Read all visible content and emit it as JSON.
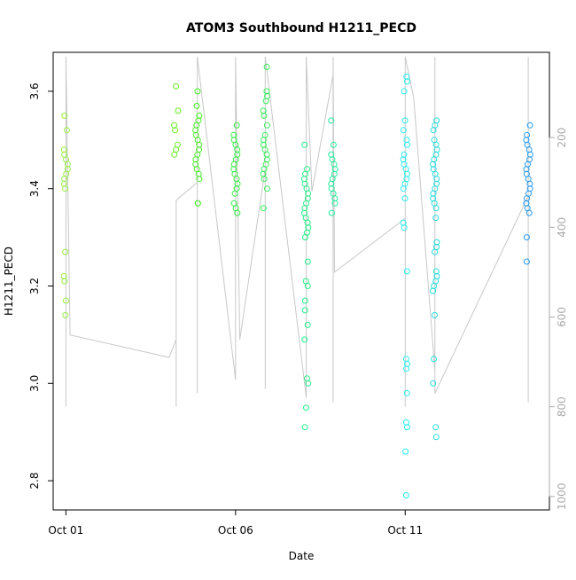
{
  "chart_data": {
    "type": "scatter",
    "title": "ATOM3 Southbound H1211_PECD",
    "xlabel": "Date",
    "ylabel": "H1211_PECD",
    "x_ticks": [
      "Oct 01",
      "Oct 06",
      "Oct 11"
    ],
    "y_ticks": [
      2.8,
      3.0,
      3.2,
      3.4,
      3.6
    ],
    "ylim": [
      2.74,
      3.68
    ],
    "xlim": [
      "2016-09-30T15:00",
      "2016-10-15T06:00"
    ],
    "y2_label": "",
    "y2_ticks": [
      200,
      400,
      600,
      800,
      1000
    ],
    "y2lim": [
      1030,
      10
    ],
    "marker": "open-circle",
    "series": [
      {
        "color": "#99ee44",
        "points": [
          [
            "2016-10-01T00:00",
            3.55
          ],
          [
            "2016-10-01T00:00",
            3.52
          ],
          [
            "2016-10-01T00:00",
            3.48
          ],
          [
            "2016-10-01T00:00",
            3.47
          ],
          [
            "2016-10-01T00:00",
            3.46
          ],
          [
            "2016-10-01T00:00",
            3.45
          ],
          [
            "2016-10-01T00:00",
            3.44
          ],
          [
            "2016-10-01T00:00",
            3.43
          ],
          [
            "2016-10-01T00:00",
            3.42
          ],
          [
            "2016-10-01T00:00",
            3.41
          ],
          [
            "2016-10-01T00:00",
            3.4
          ],
          [
            "2016-10-01T00:00",
            3.27
          ],
          [
            "2016-10-01T00:00",
            3.22
          ],
          [
            "2016-10-01T00:00",
            3.21
          ],
          [
            "2016-10-01T00:00",
            3.17
          ],
          [
            "2016-10-01T00:00",
            3.14
          ]
        ]
      },
      {
        "color": "#66ee22",
        "points": [
          [
            "2016-10-04T06:00",
            3.61
          ],
          [
            "2016-10-04T06:00",
            3.56
          ],
          [
            "2016-10-04T06:00",
            3.53
          ],
          [
            "2016-10-04T06:00",
            3.52
          ],
          [
            "2016-10-04T06:00",
            3.49
          ],
          [
            "2016-10-04T06:00",
            3.48
          ],
          [
            "2016-10-04T06:00",
            3.47
          ]
        ]
      },
      {
        "color": "#44ee22",
        "points": [
          [
            "2016-10-04T21:00",
            3.6
          ],
          [
            "2016-10-04T21:00",
            3.57
          ],
          [
            "2016-10-04T21:00",
            3.55
          ],
          [
            "2016-10-04T21:00",
            3.54
          ],
          [
            "2016-10-04T21:00",
            3.53
          ],
          [
            "2016-10-04T21:00",
            3.52
          ],
          [
            "2016-10-04T21:00",
            3.51
          ],
          [
            "2016-10-04T21:00",
            3.5
          ],
          [
            "2016-10-04T21:00",
            3.49
          ],
          [
            "2016-10-04T21:00",
            3.48
          ],
          [
            "2016-10-04T21:00",
            3.47
          ],
          [
            "2016-10-04T21:00",
            3.46
          ],
          [
            "2016-10-04T21:00",
            3.45
          ],
          [
            "2016-10-04T21:00",
            3.44
          ],
          [
            "2016-10-04T21:00",
            3.43
          ],
          [
            "2016-10-04T21:00",
            3.42
          ],
          [
            "2016-10-04T21:00",
            3.37
          ],
          [
            "2016-10-04T21:00",
            3.37
          ]
        ]
      },
      {
        "color": "#33ee44",
        "points": [
          [
            "2016-10-06T00:00",
            3.53
          ],
          [
            "2016-10-06T00:00",
            3.51
          ],
          [
            "2016-10-06T00:00",
            3.5
          ],
          [
            "2016-10-06T00:00",
            3.49
          ],
          [
            "2016-10-06T00:00",
            3.48
          ],
          [
            "2016-10-06T00:00",
            3.47
          ],
          [
            "2016-10-06T00:00",
            3.46
          ],
          [
            "2016-10-06T00:00",
            3.45
          ],
          [
            "2016-10-06T00:00",
            3.44
          ],
          [
            "2016-10-06T00:00",
            3.43
          ],
          [
            "2016-10-06T00:00",
            3.42
          ],
          [
            "2016-10-06T00:00",
            3.41
          ],
          [
            "2016-10-06T00:00",
            3.4
          ],
          [
            "2016-10-06T00:00",
            3.39
          ],
          [
            "2016-10-06T00:00",
            3.37
          ],
          [
            "2016-10-06T00:00",
            3.36
          ],
          [
            "2016-10-06T00:00",
            3.35
          ]
        ]
      },
      {
        "color": "#33ee55",
        "points": [
          [
            "2016-10-06T21:00",
            3.65
          ],
          [
            "2016-10-06T21:00",
            3.6
          ],
          [
            "2016-10-06T21:00",
            3.59
          ],
          [
            "2016-10-06T21:00",
            3.58
          ],
          [
            "2016-10-06T21:00",
            3.56
          ],
          [
            "2016-10-06T21:00",
            3.55
          ],
          [
            "2016-10-06T21:00",
            3.53
          ],
          [
            "2016-10-06T21:00",
            3.51
          ],
          [
            "2016-10-06T21:00",
            3.5
          ],
          [
            "2016-10-06T21:00",
            3.49
          ],
          [
            "2016-10-06T21:00",
            3.48
          ],
          [
            "2016-10-06T21:00",
            3.47
          ],
          [
            "2016-10-06T21:00",
            3.46
          ],
          [
            "2016-10-06T21:00",
            3.45
          ],
          [
            "2016-10-06T21:00",
            3.44
          ],
          [
            "2016-10-06T21:00",
            3.43
          ],
          [
            "2016-10-06T21:00",
            3.42
          ],
          [
            "2016-10-06T21:00",
            3.4
          ],
          [
            "2016-10-06T21:00",
            3.36
          ]
        ]
      },
      {
        "color": "#22ee88",
        "points": [
          [
            "2016-10-08T02:00",
            3.49
          ],
          [
            "2016-10-08T02:00",
            3.44
          ],
          [
            "2016-10-08T02:00",
            3.43
          ],
          [
            "2016-10-08T02:00",
            3.42
          ],
          [
            "2016-10-08T02:00",
            3.41
          ],
          [
            "2016-10-08T02:00",
            3.4
          ],
          [
            "2016-10-08T02:00",
            3.39
          ],
          [
            "2016-10-08T02:00",
            3.38
          ],
          [
            "2016-10-08T02:00",
            3.37
          ],
          [
            "2016-10-08T02:00",
            3.36
          ],
          [
            "2016-10-08T02:00",
            3.35
          ],
          [
            "2016-10-08T02:00",
            3.34
          ],
          [
            "2016-10-08T02:00",
            3.33
          ],
          [
            "2016-10-08T02:00",
            3.32
          ],
          [
            "2016-10-08T02:00",
            3.31
          ],
          [
            "2016-10-08T02:00",
            3.3
          ],
          [
            "2016-10-08T02:00",
            3.25
          ],
          [
            "2016-10-08T02:00",
            3.21
          ],
          [
            "2016-10-08T02:00",
            3.2
          ],
          [
            "2016-10-08T02:00",
            3.17
          ],
          [
            "2016-10-08T02:00",
            3.15
          ],
          [
            "2016-10-08T02:00",
            3.12
          ],
          [
            "2016-10-08T02:00",
            3.09
          ],
          [
            "2016-10-08T02:00",
            3.01
          ],
          [
            "2016-10-08T02:00",
            3.0
          ],
          [
            "2016-10-08T02:00",
            2.95
          ],
          [
            "2016-10-08T02:00",
            2.91
          ]
        ]
      },
      {
        "color": "#22ee99",
        "points": [
          [
            "2016-10-08T21:00",
            3.54
          ],
          [
            "2016-10-08T21:00",
            3.49
          ],
          [
            "2016-10-08T21:00",
            3.47
          ],
          [
            "2016-10-08T21:00",
            3.46
          ],
          [
            "2016-10-08T21:00",
            3.45
          ],
          [
            "2016-10-08T21:00",
            3.44
          ],
          [
            "2016-10-08T21:00",
            3.43
          ],
          [
            "2016-10-08T21:00",
            3.42
          ],
          [
            "2016-10-08T21:00",
            3.41
          ],
          [
            "2016-10-08T21:00",
            3.4
          ],
          [
            "2016-10-08T21:00",
            3.39
          ],
          [
            "2016-10-08T21:00",
            3.38
          ],
          [
            "2016-10-08T21:00",
            3.37
          ],
          [
            "2016-10-08T21:00",
            3.35
          ]
        ]
      },
      {
        "color": "#22eeee",
        "points": [
          [
            "2016-10-11T00:00",
            3.63
          ],
          [
            "2016-10-11T00:00",
            3.62
          ],
          [
            "2016-10-11T00:00",
            3.6
          ],
          [
            "2016-10-11T00:00",
            3.54
          ],
          [
            "2016-10-11T00:00",
            3.52
          ],
          [
            "2016-10-11T00:00",
            3.5
          ],
          [
            "2016-10-11T00:00",
            3.49
          ],
          [
            "2016-10-11T00:00",
            3.47
          ],
          [
            "2016-10-11T00:00",
            3.46
          ],
          [
            "2016-10-11T00:00",
            3.45
          ],
          [
            "2016-10-11T00:00",
            3.44
          ],
          [
            "2016-10-11T00:00",
            3.43
          ],
          [
            "2016-10-11T00:00",
            3.42
          ],
          [
            "2016-10-11T00:00",
            3.41
          ],
          [
            "2016-10-11T00:00",
            3.4
          ],
          [
            "2016-10-11T00:00",
            3.38
          ],
          [
            "2016-10-11T00:00",
            3.33
          ],
          [
            "2016-10-11T00:00",
            3.32
          ],
          [
            "2016-10-11T00:00",
            3.23
          ],
          [
            "2016-10-11T00:00",
            3.05
          ],
          [
            "2016-10-11T00:00",
            3.04
          ],
          [
            "2016-10-11T00:00",
            3.03
          ],
          [
            "2016-10-11T00:00",
            2.98
          ],
          [
            "2016-10-11T00:00",
            2.92
          ],
          [
            "2016-10-11T00:00",
            2.91
          ],
          [
            "2016-10-11T00:00",
            2.86
          ],
          [
            "2016-10-11T00:00",
            2.77
          ]
        ]
      },
      {
        "color": "#22dddd",
        "points": [
          [
            "2016-10-11T21:00",
            3.54
          ],
          [
            "2016-10-11T21:00",
            3.53
          ],
          [
            "2016-10-11T21:00",
            3.52
          ],
          [
            "2016-10-11T21:00",
            3.5
          ],
          [
            "2016-10-11T21:00",
            3.49
          ],
          [
            "2016-10-11T21:00",
            3.48
          ],
          [
            "2016-10-11T21:00",
            3.47
          ],
          [
            "2016-10-11T21:00",
            3.46
          ],
          [
            "2016-10-11T21:00",
            3.45
          ],
          [
            "2016-10-11T21:00",
            3.44
          ],
          [
            "2016-10-11T21:00",
            3.43
          ],
          [
            "2016-10-11T21:00",
            3.42
          ],
          [
            "2016-10-11T21:00",
            3.41
          ],
          [
            "2016-10-11T21:00",
            3.4
          ],
          [
            "2016-10-11T21:00",
            3.39
          ],
          [
            "2016-10-11T21:00",
            3.38
          ],
          [
            "2016-10-11T21:00",
            3.37
          ],
          [
            "2016-10-11T21:00",
            3.36
          ],
          [
            "2016-10-11T21:00",
            3.34
          ],
          [
            "2016-10-11T21:00",
            3.29
          ],
          [
            "2016-10-11T21:00",
            3.28
          ],
          [
            "2016-10-11T21:00",
            3.27
          ],
          [
            "2016-10-11T21:00",
            3.23
          ],
          [
            "2016-10-11T21:00",
            3.22
          ],
          [
            "2016-10-11T21:00",
            3.21
          ],
          [
            "2016-10-11T21:00",
            3.2
          ],
          [
            "2016-10-11T21:00",
            3.19
          ],
          [
            "2016-10-11T21:00",
            3.14
          ],
          [
            "2016-10-11T21:00",
            3.05
          ],
          [
            "2016-10-11T21:00",
            3.0
          ],
          [
            "2016-10-11T21:00",
            2.91
          ],
          [
            "2016-10-11T21:00",
            2.89
          ]
        ]
      },
      {
        "color": "#2299ee",
        "points": [
          [
            "2016-10-14T15:00",
            3.53
          ],
          [
            "2016-10-14T15:00",
            3.51
          ],
          [
            "2016-10-14T15:00",
            3.5
          ],
          [
            "2016-10-14T15:00",
            3.49
          ],
          [
            "2016-10-14T15:00",
            3.48
          ],
          [
            "2016-10-14T15:00",
            3.47
          ],
          [
            "2016-10-14T15:00",
            3.46
          ],
          [
            "2016-10-14T15:00",
            3.45
          ],
          [
            "2016-10-14T15:00",
            3.44
          ],
          [
            "2016-10-14T15:00",
            3.43
          ],
          [
            "2016-10-14T15:00",
            3.42
          ],
          [
            "2016-10-14T15:00",
            3.41
          ],
          [
            "2016-10-14T15:00",
            3.4
          ],
          [
            "2016-10-14T15:00",
            3.39
          ],
          [
            "2016-10-14T15:00",
            3.38
          ],
          [
            "2016-10-14T15:00",
            3.37
          ],
          [
            "2016-10-14T15:00",
            3.36
          ],
          [
            "2016-10-14T15:00",
            3.35
          ],
          [
            "2016-10-14T15:00",
            3.3
          ],
          [
            "2016-10-14T15:00",
            3.25
          ]
        ]
      }
    ],
    "pressure_trace": {
      "color": "#c8c8c8",
      "points": [
        [
          "2016-10-01T00:00",
          800
        ],
        [
          "2016-10-01T00:00",
          20
        ],
        [
          "2016-10-01T03:00",
          640
        ],
        [
          "2016-10-04T01:00",
          690
        ],
        [
          "2016-10-04T06:00",
          650
        ],
        [
          "2016-10-04T06:00",
          800
        ],
        [
          "2016-10-04T06:00",
          340
        ],
        [
          "2016-10-04T21:00",
          300
        ],
        [
          "2016-10-04T21:00",
          770
        ],
        [
          "2016-10-04T21:00",
          20
        ],
        [
          "2016-10-06T00:00",
          740
        ],
        [
          "2016-10-06T00:00",
          20
        ],
        [
          "2016-10-06T03:00",
          650
        ],
        [
          "2016-10-06T21:00",
          270
        ],
        [
          "2016-10-06T21:00",
          760
        ],
        [
          "2016-10-06T21:00",
          20
        ],
        [
          "2016-10-08T02:00",
          780
        ],
        [
          "2016-10-08T02:00",
          20
        ],
        [
          "2016-10-08T06:00",
          320
        ],
        [
          "2016-10-08T21:00",
          60
        ],
        [
          "2016-10-08T21:00",
          790
        ],
        [
          "2016-10-08T21:00",
          20
        ],
        [
          "2016-10-08T22:00",
          500
        ],
        [
          "2016-10-11T00:00",
          380
        ],
        [
          "2016-10-11T00:00",
          800
        ],
        [
          "2016-10-11T00:00",
          20
        ],
        [
          "2016-10-11T06:00",
          110
        ],
        [
          "2016-10-11T21:00",
          720
        ],
        [
          "2016-10-11T21:00",
          20
        ],
        [
          "2016-10-11T21:00",
          770
        ],
        [
          "2016-10-14T15:00",
          330
        ],
        [
          "2016-10-14T15:00",
          20
        ],
        [
          "2016-10-14T15:00",
          790
        ]
      ]
    }
  }
}
